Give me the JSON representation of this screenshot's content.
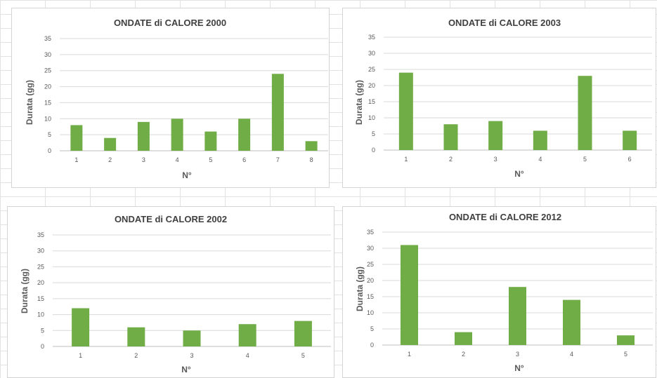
{
  "chart_data": [
    {
      "type": "bar",
      "title": "ONDATE di CALORE 2000",
      "xlabel": "N°",
      "ylabel": "Durata (gg)",
      "categories": [
        "1",
        "2",
        "3",
        "4",
        "5",
        "6",
        "7",
        "8"
      ],
      "values": [
        8,
        4,
        9,
        10,
        6,
        10,
        24,
        3
      ],
      "yticks": [
        "0",
        "5",
        "10",
        "15",
        "20",
        "25",
        "30",
        "35"
      ],
      "ylim": [
        0,
        35
      ],
      "grid": true,
      "legend": "none",
      "color": "#70ad47"
    },
    {
      "type": "bar",
      "title": "ONDATE di CALORE 2003",
      "xlabel": "N°",
      "ylabel": "Durata (gg)",
      "categories": [
        "1",
        "2",
        "3",
        "4",
        "5",
        "6"
      ],
      "values": [
        24,
        8,
        9,
        6,
        23,
        6
      ],
      "yticks": [
        "0",
        "5",
        "10",
        "15",
        "20",
        "25",
        "30",
        "35"
      ],
      "ylim": [
        0,
        35
      ],
      "grid": true,
      "legend": "none",
      "color": "#70ad47"
    },
    {
      "type": "bar",
      "title": "ONDATE di CALORE 2002",
      "xlabel": "N°",
      "ylabel": "Durata (gg)",
      "categories": [
        "1",
        "2",
        "3",
        "4",
        "5"
      ],
      "values": [
        12,
        6,
        5,
        7,
        8
      ],
      "yticks": [
        "0",
        "5",
        "10",
        "15",
        "20",
        "25",
        "30",
        "35"
      ],
      "ylim": [
        0,
        35
      ],
      "grid": true,
      "legend": "none",
      "color": "#70ad47"
    },
    {
      "type": "bar",
      "title": "ONDATE di CALORE 2012",
      "xlabel": "N°",
      "ylabel": "Durata (gg)",
      "categories": [
        "1",
        "2",
        "3",
        "4",
        "5"
      ],
      "values": [
        31,
        4,
        18,
        14,
        3
      ],
      "yticks": [
        "0",
        "5",
        "10",
        "15",
        "20",
        "25",
        "30",
        "35"
      ],
      "ylim": [
        0,
        35
      ],
      "grid": true,
      "legend": "none",
      "color": "#70ad47"
    }
  ]
}
